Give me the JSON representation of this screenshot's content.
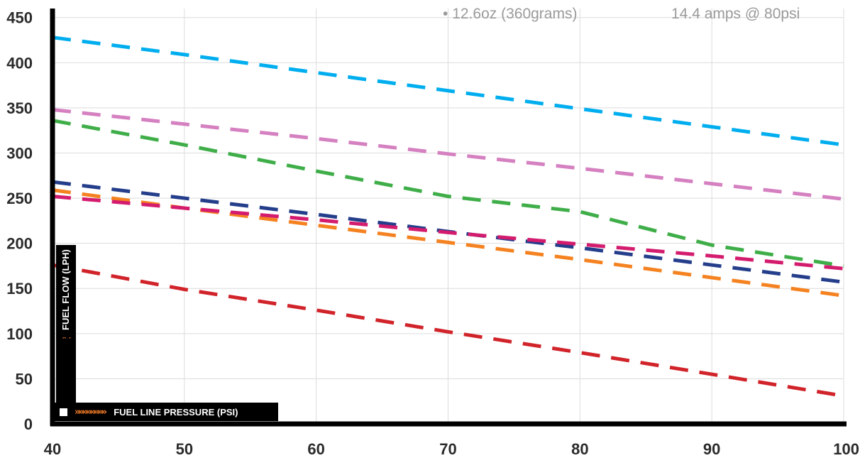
{
  "notes": {
    "weight": "12.6oz (360grams)",
    "amps": "14.4 amps @ 80psi"
  },
  "chart_data": {
    "type": "line",
    "title": "",
    "xlabel": "FUEL LINE PRESSURE (PSI)",
    "ylabel": "FUEL FLOW (LPH)",
    "xlim": [
      40,
      100
    ],
    "ylim": [
      0,
      460
    ],
    "xticks": [
      40,
      50,
      60,
      70,
      80,
      90,
      100
    ],
    "yticks": [
      0,
      50,
      100,
      150,
      200,
      250,
      300,
      350,
      400,
      450
    ],
    "grid": true,
    "line_style": "dashed",
    "x": [
      40,
      50,
      60,
      70,
      80,
      90,
      100
    ],
    "series": [
      {
        "color": "#00aeef",
        "values": [
          428,
          409,
          389,
          369,
          349,
          329,
          309
        ]
      },
      {
        "color": "#d580c0",
        "values": [
          348,
          332,
          316,
          299,
          283,
          266,
          249
        ]
      },
      {
        "color": "#3fae49",
        "values": [
          336,
          309,
          280,
          252,
          235,
          198,
          175
        ]
      },
      {
        "color": "#243e8b",
        "values": [
          268,
          250,
          232,
          213,
          195,
          176,
          157
        ]
      },
      {
        "color": "#f58220",
        "values": [
          259,
          239,
          220,
          201,
          182,
          162,
          142
        ]
      },
      {
        "color": "#d41c6e",
        "values": [
          252,
          239,
          226,
          212,
          199,
          186,
          172
        ]
      },
      {
        "color": "#d1232a",
        "values": [
          176,
          149,
          126,
          102,
          79,
          55,
          31
        ]
      }
    ]
  }
}
